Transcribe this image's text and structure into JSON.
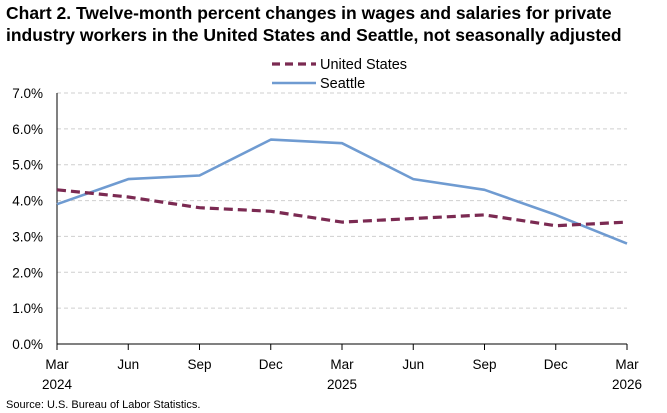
{
  "chart_data": {
    "type": "line",
    "title_lines": [
      "Chart 2. Twelve-month percent changes in wages and salaries for private",
      "industry workers in the United States and Seattle, not seasonally adjusted"
    ],
    "x": [
      "Mar 2024",
      "Jun 2024",
      "Sep 2024",
      "Dec 2024",
      "Mar 2025",
      "Jun 2025",
      "Sep 2025",
      "Dec 2025",
      "Mar 2026"
    ],
    "x_tick_labels": [
      {
        "month": "Mar",
        "year": "2024"
      },
      {
        "month": "Jun",
        "year": ""
      },
      {
        "month": "Sep",
        "year": ""
      },
      {
        "month": "Dec",
        "year": ""
      },
      {
        "month": "Mar",
        "year": "2025"
      },
      {
        "month": "Jun",
        "year": ""
      },
      {
        "month": "Sep",
        "year": ""
      },
      {
        "month": "Dec",
        "year": ""
      },
      {
        "month": "Mar",
        "year": "2026"
      }
    ],
    "y_ticks": [
      0,
      1,
      2,
      3,
      4,
      5,
      6,
      7
    ],
    "y_tick_labels": [
      "0.0%",
      "1.0%",
      "2.0%",
      "3.0%",
      "4.0%",
      "5.0%",
      "6.0%",
      "7.0%"
    ],
    "ylim": [
      0,
      7
    ],
    "grid": "horizontal-dashed",
    "legend_position": "top-center",
    "series": [
      {
        "name": "United States",
        "style": "dashed",
        "color": "#7b2a52",
        "values": [
          4.3,
          4.1,
          3.8,
          3.7,
          3.4,
          3.5,
          3.6,
          3.3,
          3.4
        ]
      },
      {
        "name": "Seattle",
        "style": "solid",
        "color": "#6f9bd1",
        "values": [
          3.9,
          4.6,
          4.7,
          5.7,
          5.6,
          4.6,
          4.3,
          3.6,
          2.8
        ]
      }
    ],
    "source": "Source: U.S. Bureau of Labor Statistics."
  }
}
